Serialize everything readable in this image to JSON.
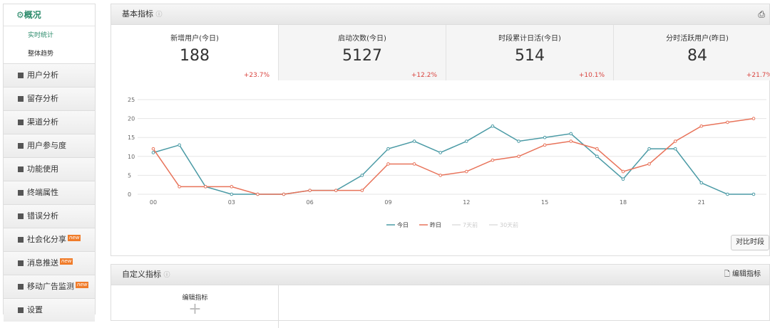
{
  "sidebar": {
    "header": "概况",
    "subitems": [
      "实时统计",
      "整体趋势"
    ],
    "items": [
      {
        "label": "用户分析"
      },
      {
        "label": "留存分析"
      },
      {
        "label": "渠道分析"
      },
      {
        "label": "用户参与度"
      },
      {
        "label": "功能使用"
      },
      {
        "label": "终端属性"
      },
      {
        "label": "错误分析"
      },
      {
        "label": "社会化分享",
        "badge": "new"
      },
      {
        "label": "消息推送",
        "badge": "new"
      },
      {
        "label": "移动广告监测",
        "badge": "new"
      },
      {
        "label": "设置"
      }
    ]
  },
  "panel": {
    "title": "基本指标",
    "metrics": [
      {
        "label": "新增用户(今日)",
        "value": "188",
        "change": "+23.7%"
      },
      {
        "label": "启动次数(今日)",
        "value": "5127",
        "change": "+12.2%"
      },
      {
        "label": "时段累计日活(今日)",
        "value": "514",
        "change": "+10.1%"
      },
      {
        "label": "分时活跃用户(昨日)",
        "value": "84",
        "change": "+21.7%"
      }
    ],
    "compare_button": "对比时段"
  },
  "chart_data": {
    "type": "line",
    "categories": [
      "00",
      null,
      null,
      "03",
      null,
      null,
      "06",
      null,
      null,
      "09",
      null,
      null,
      "12",
      null,
      null,
      "15",
      null,
      null,
      "18",
      null,
      null,
      "21",
      null,
      null
    ],
    "series": [
      {
        "name": "今日",
        "color": "#4a9aa5",
        "values": [
          11,
          13,
          2,
          0,
          0,
          0,
          1,
          1,
          5,
          12,
          14,
          11,
          14,
          18,
          14,
          15,
          16,
          10,
          4,
          12,
          12,
          3,
          0,
          0
        ]
      },
      {
        "name": "昨日",
        "color": "#e8735a",
        "values": [
          12,
          2,
          2,
          2,
          0,
          0,
          1,
          1,
          1,
          8,
          8,
          5,
          6,
          9,
          10,
          13,
          14,
          12,
          6,
          8,
          14,
          18,
          19,
          20
        ]
      }
    ],
    "inactive_legend": [
      "7天前",
      "30天前"
    ],
    "ylim": [
      0,
      25
    ],
    "yticks": [
      0,
      5,
      10,
      15,
      20,
      25
    ],
    "grid": true
  },
  "custom_panel": {
    "title": "自定义指标",
    "action": "编辑指标",
    "box_label": "编辑指标"
  }
}
